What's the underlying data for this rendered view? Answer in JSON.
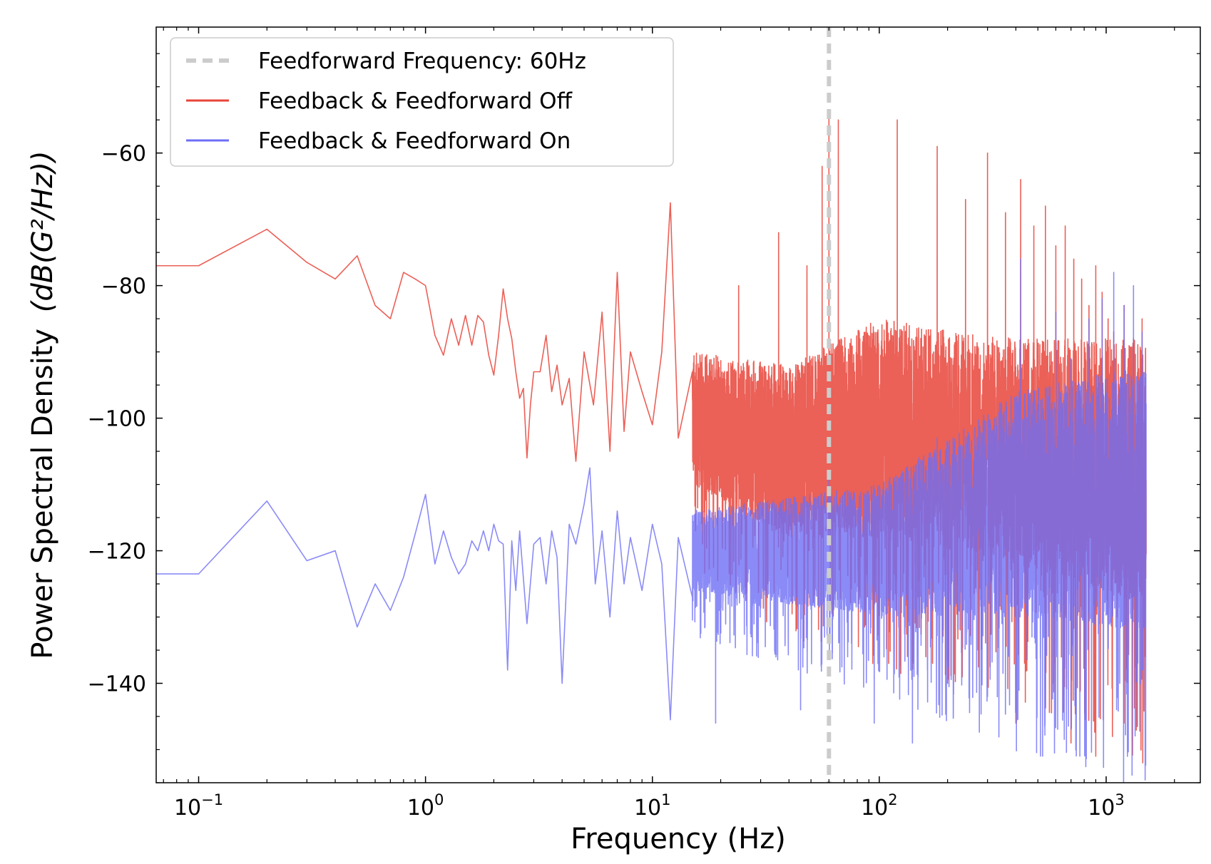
{
  "chart_data": {
    "type": "line",
    "title": "",
    "xlabel": "Frequency (Hz)",
    "ylabel": "Power Spectral Density",
    "ylabel_unit": "(dB(G²/Hz))",
    "x_scale": "log",
    "xlim": [
      0.065,
      2600
    ],
    "ylim": [
      -155,
      -41
    ],
    "x_ticks": [
      {
        "value": 0.1,
        "base": "10",
        "exp": "−1"
      },
      {
        "value": 1,
        "base": "10",
        "exp": "0"
      },
      {
        "value": 10,
        "base": "10",
        "exp": "1"
      },
      {
        "value": 100,
        "base": "10",
        "exp": "2"
      },
      {
        "value": 1000,
        "base": "10",
        "exp": "3"
      }
    ],
    "y_ticks": [
      {
        "value": -60,
        "label": "−60"
      },
      {
        "value": -80,
        "label": "−80"
      },
      {
        "value": -100,
        "label": "−100"
      },
      {
        "value": -120,
        "label": "−120"
      },
      {
        "value": -140,
        "label": "−140"
      }
    ],
    "grid": false,
    "legend_position": "top-left",
    "vline": {
      "name": "Feedforward Frequency: 60Hz",
      "x": 60,
      "color": "#cccccc",
      "style": "dashed"
    },
    "series": [
      {
        "name": "Feedback & Feedforward Off",
        "color": "#e8443a",
        "opacity": 0.85,
        "x": [
          0.065,
          0.1,
          0.2,
          0.3,
          0.4,
          0.5,
          0.6,
          0.7,
          0.8,
          0.9,
          1.0,
          1.1,
          1.2,
          1.3,
          1.4,
          1.5,
          1.6,
          1.7,
          1.8,
          1.9,
          2.0,
          2.1,
          2.2,
          2.3,
          2.4,
          2.5,
          2.6,
          2.7,
          2.8,
          2.9,
          3.0,
          3.2,
          3.4,
          3.6,
          3.8,
          4.0,
          4.3,
          4.6,
          5.0,
          5.5,
          6.0,
          6.5,
          7.0,
          7.5,
          8.0,
          9.0,
          10.0,
          11.0,
          12.0,
          13.0,
          15.0
        ],
        "values": [
          -77,
          -77,
          -71.5,
          -76.5,
          -79,
          -75.5,
          -83,
          -85,
          -78,
          -79,
          -80,
          -87.5,
          -90.5,
          -85,
          -89,
          -84.5,
          -89,
          -84.5,
          -85.5,
          -90.5,
          -93.5,
          -87.5,
          -80.5,
          -85,
          -88,
          -93,
          -97,
          -95.5,
          -106,
          -98,
          -93,
          -93,
          -87.5,
          -96,
          -92,
          -98,
          -94,
          -106.5,
          -90,
          -98,
          -84,
          -105,
          -78,
          -102,
          -90,
          -96,
          -101,
          -90,
          -67.5,
          -103,
          -93
        ],
        "dense": {
          "x_range": [
            15,
            1500
          ],
          "band_low": [
            -110,
            -118,
            -118,
            -122,
            -128
          ],
          "band_high": [
            -90,
            -92,
            -85,
            -88,
            -88
          ],
          "band_x": [
            15,
            40,
            100,
            400,
            1500
          ],
          "spikes": [
            {
              "x": 12,
              "value": -67.5
            },
            {
              "x": 24,
              "value": -80
            },
            {
              "x": 36,
              "value": -72
            },
            {
              "x": 48,
              "value": -77
            },
            {
              "x": 56,
              "value": -62
            },
            {
              "x": 60,
              "value": -54
            },
            {
              "x": 66,
              "value": -55
            },
            {
              "x": 120,
              "value": -55
            },
            {
              "x": 180,
              "value": -59
            },
            {
              "x": 240,
              "value": -67
            },
            {
              "x": 300,
              "value": -60
            },
            {
              "x": 360,
              "value": -69
            },
            {
              "x": 420,
              "value": -64
            },
            {
              "x": 480,
              "value": -71
            },
            {
              "x": 540,
              "value": -68
            },
            {
              "x": 600,
              "value": -74
            },
            {
              "x": 660,
              "value": -71
            },
            {
              "x": 720,
              "value": -76
            },
            {
              "x": 780,
              "value": -79
            },
            {
              "x": 840,
              "value": -83
            },
            {
              "x": 900,
              "value": -77
            },
            {
              "x": 960,
              "value": -81
            },
            {
              "x": 1020,
              "value": -85
            },
            {
              "x": 1080,
              "value": -87
            },
            {
              "x": 1200,
              "value": -83
            },
            {
              "x": 1320,
              "value": -88
            },
            {
              "x": 1440,
              "value": -85
            }
          ],
          "dips": [
            {
              "x": 20,
              "value": -108
            },
            {
              "x": 30,
              "value": -109
            },
            {
              "x": 70,
              "value": -106
            },
            {
              "x": 110,
              "value": -137
            },
            {
              "x": 200,
              "value": -140
            },
            {
              "x": 400,
              "value": -146
            },
            {
              "x": 700,
              "value": -149
            },
            {
              "x": 900,
              "value": -151
            },
            {
              "x": 1200,
              "value": -146
            },
            {
              "x": 1450,
              "value": -152
            }
          ]
        }
      },
      {
        "name": "Feedback & Feedforward On",
        "color": "#6e6ef5",
        "opacity": 0.8,
        "x": [
          0.065,
          0.1,
          0.2,
          0.3,
          0.4,
          0.5,
          0.6,
          0.7,
          0.8,
          0.9,
          1.0,
          1.1,
          1.2,
          1.3,
          1.4,
          1.5,
          1.6,
          1.7,
          1.8,
          1.9,
          2.0,
          2.1,
          2.2,
          2.3,
          2.4,
          2.5,
          2.6,
          2.8,
          3.0,
          3.2,
          3.4,
          3.6,
          3.8,
          4.0,
          4.3,
          4.6,
          5.0,
          5.3,
          5.6,
          6.0,
          6.5,
          7.0,
          7.5,
          8.0,
          9.0,
          10.0,
          11.0,
          12.0,
          13.0,
          15.0
        ],
        "values": [
          -123.5,
          -123.5,
          -112.5,
          -121.5,
          -120,
          -131.5,
          -125,
          -129,
          -124,
          -117.5,
          -111.5,
          -122,
          -117,
          -121,
          -123.5,
          -122,
          -118.5,
          -120,
          -117,
          -120,
          -116,
          -118.5,
          -119,
          -138,
          -118.5,
          -126,
          -117,
          -131,
          -119,
          -118,
          -125,
          -117,
          -121,
          -140,
          -116,
          -119,
          -113,
          -107.5,
          -125,
          -117,
          -130,
          -114,
          -125,
          -118,
          -126,
          -116,
          -122,
          -145.5,
          -118,
          -127
        ],
        "dense": {
          "x_range": [
            15,
            1500
          ],
          "band_low": [
            -126,
            -128,
            -130,
            -130,
            -132
          ],
          "band_high": [
            -114,
            -112,
            -110,
            -96,
            -92
          ],
          "band_x": [
            15,
            40,
            100,
            400,
            1500
          ],
          "spikes": [
            {
              "x": 60,
              "value": -109
            },
            {
              "x": 180,
              "value": -103
            },
            {
              "x": 420,
              "value": -76
            },
            {
              "x": 600,
              "value": -84
            },
            {
              "x": 700,
              "value": -91
            },
            {
              "x": 840,
              "value": -85
            },
            {
              "x": 960,
              "value": -82
            },
            {
              "x": 1080,
              "value": -78
            },
            {
              "x": 1200,
              "value": -83
            },
            {
              "x": 1320,
              "value": -80
            },
            {
              "x": 1440,
              "value": -87
            }
          ],
          "dips": [
            {
              "x": 19,
              "value": -146
            },
            {
              "x": 45,
              "value": -144
            },
            {
              "x": 95,
              "value": -146
            },
            {
              "x": 140,
              "value": -149
            },
            {
              "x": 300,
              "value": -142
            },
            {
              "x": 700,
              "value": -138
            },
            {
              "x": 1450,
              "value": -138
            }
          ]
        }
      }
    ]
  }
}
